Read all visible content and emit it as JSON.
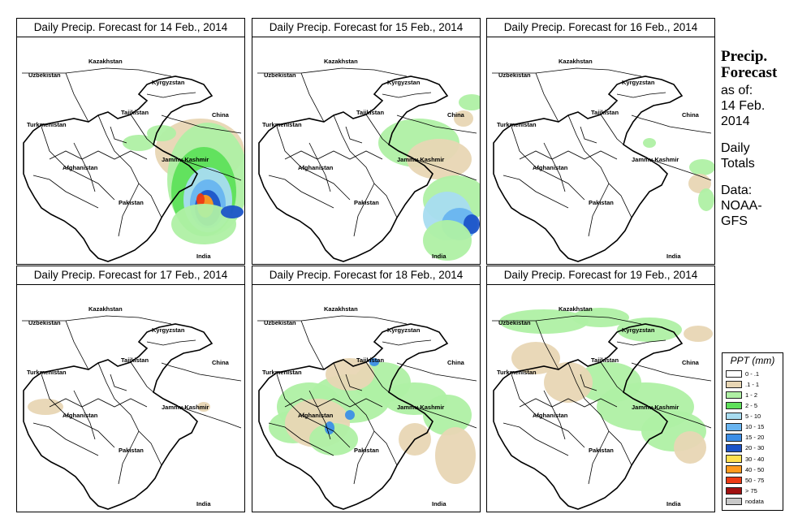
{
  "panels": [
    {
      "title": "Daily Precip. Forecast for  14 Feb., 2014"
    },
    {
      "title": "Daily Precip. Forecast for  15 Feb., 2014"
    },
    {
      "title": "Daily Precip. Forecast for  16 Feb., 2014"
    },
    {
      "title": "Daily Precip. Forecast for  17 Feb., 2014"
    },
    {
      "title": "Daily Precip. Forecast for  18 Feb., 2014"
    },
    {
      "title": "Daily Precip. Forecast for  19 Feb., 2014"
    }
  ],
  "place_labels": {
    "kazakhstan": "Kazakhstan",
    "uzbekistan": "Uzbekistan",
    "kyrgyzstan": "Kyrgyzstan",
    "tajikistan": "Tajikistan",
    "turkmenistan": "Turkmenistan",
    "china": "China",
    "afghanistan": "Afghanistan",
    "jammu_kashmir": "Jammu Kashmir",
    "pakistan": "Pakistan",
    "india": "India"
  },
  "side": {
    "heading_1": "Precip.",
    "heading_2": "Forecast",
    "as_of": "as of:",
    "date_1": "14 Feb.",
    "date_2": "2014",
    "daily": "Daily",
    "totals": "Totals",
    "data": "Data:",
    "source_1": "NOAA-",
    "source_2": "GFS"
  },
  "legend": {
    "title": "PPT (mm)",
    "classes": [
      {
        "label": "0 - .1",
        "color": "#ffffff"
      },
      {
        "label": ".1 - 1",
        "color": "#e8d6b4"
      },
      {
        "label": "1 - 2",
        "color": "#aff0a4"
      },
      {
        "label": "2 - 5",
        "color": "#5ee05a"
      },
      {
        "label": "5 - 10",
        "color": "#a8dcf0"
      },
      {
        "label": "10 - 15",
        "color": "#68b4f0"
      },
      {
        "label": "15 - 20",
        "color": "#3c8ee6"
      },
      {
        "label": "20 - 30",
        "color": "#1c54c8"
      },
      {
        "label": "30 - 40",
        "color": "#ffe050"
      },
      {
        "label": "40 - 50",
        "color": "#ff9a1e"
      },
      {
        "label": "50 - 75",
        "color": "#ec3a14"
      },
      {
        "label": "> 75",
        "color": "#a01010"
      },
      {
        "label": "nodata",
        "color": "#c8c8c8"
      }
    ]
  }
}
